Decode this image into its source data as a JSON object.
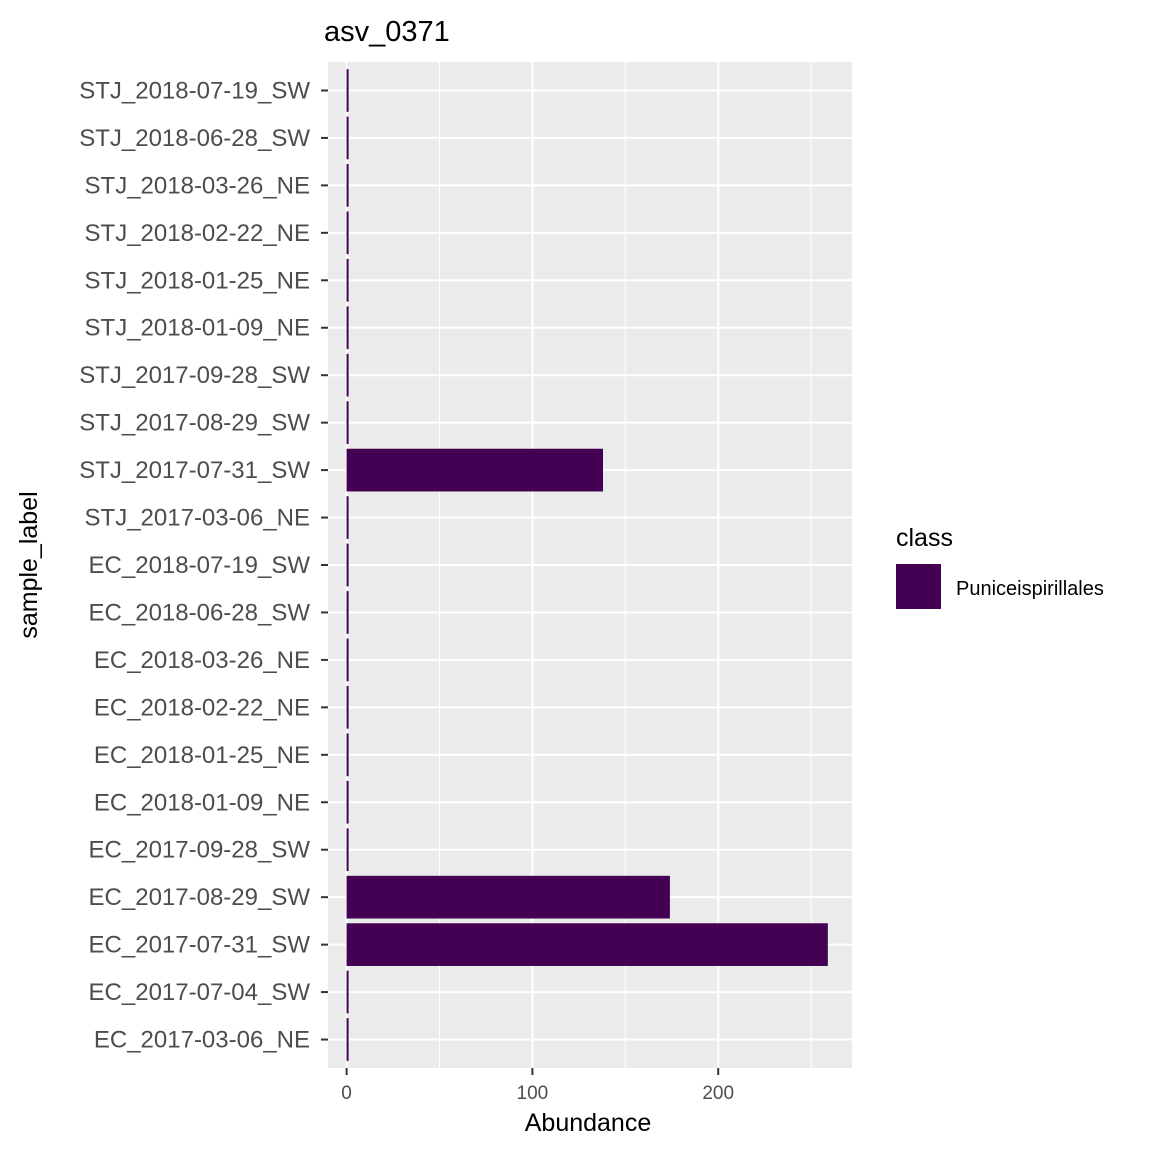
{
  "chart_data": {
    "type": "bar",
    "orientation": "horizontal",
    "title": "asv_0371",
    "xlabel": "Abundance",
    "ylabel": "sample_label",
    "xlim": [
      -10,
      272
    ],
    "xticks": [
      0,
      100,
      200
    ],
    "xtick_labels": [
      "0",
      "100",
      "200"
    ],
    "grid": true,
    "legend_position": "right",
    "legend": {
      "title": "class",
      "entries": [
        {
          "label": "Puniceispirillales",
          "color": "#440154"
        }
      ]
    },
    "categories": [
      "STJ_2018-07-19_SW",
      "STJ_2018-06-28_SW",
      "STJ_2018-03-26_NE",
      "STJ_2018-02-22_NE",
      "STJ_2018-01-25_NE",
      "STJ_2018-01-09_NE",
      "STJ_2017-09-28_SW",
      "STJ_2017-08-29_SW",
      "STJ_2017-07-31_SW",
      "STJ_2017-03-06_NE",
      "EC_2018-07-19_SW",
      "EC_2018-06-28_SW",
      "EC_2018-03-26_NE",
      "EC_2018-02-22_NE",
      "EC_2018-01-25_NE",
      "EC_2018-01-09_NE",
      "EC_2017-09-28_SW",
      "EC_2017-08-29_SW",
      "EC_2017-07-31_SW",
      "EC_2017-07-04_SW",
      "EC_2017-03-06_NE"
    ],
    "series": [
      {
        "name": "Puniceispirillales",
        "color": "#440154",
        "values": [
          1,
          1,
          1,
          1,
          1,
          1,
          1,
          1,
          138,
          1,
          1,
          1,
          1,
          1,
          1,
          1,
          1,
          174,
          259,
          1,
          1
        ]
      }
    ]
  }
}
